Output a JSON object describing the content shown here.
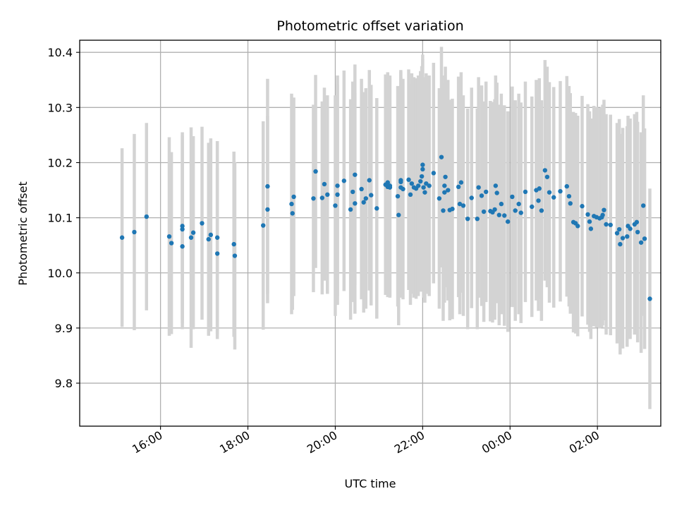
{
  "chart_data": {
    "type": "scatter",
    "title": "Photometric offset variation",
    "xlabel": "UTC time",
    "ylabel": "Photometric offset",
    "grid": true,
    "x_unit": "hours since 00:00 of first night (24 = 00:00 next day)",
    "xlim": [
      14.15,
      27.45
    ],
    "ylim": [
      9.722,
      10.422
    ],
    "xticks": [
      {
        "value": 16,
        "label": "16:00"
      },
      {
        "value": 18,
        "label": "18:00"
      },
      {
        "value": 20,
        "label": "20:00"
      },
      {
        "value": 22,
        "label": "22:00"
      },
      {
        "value": 24,
        "label": "00:00"
      },
      {
        "value": 26,
        "label": "02:00"
      }
    ],
    "yticks": [
      {
        "value": 9.8,
        "label": "9.8"
      },
      {
        "value": 9.9,
        "label": "9.9"
      },
      {
        "value": 10.0,
        "label": "10.0"
      },
      {
        "value": 10.1,
        "label": "10.1"
      },
      {
        "value": 10.2,
        "label": "10.2"
      },
      {
        "value": 10.3,
        "label": "10.3"
      },
      {
        "value": 10.4,
        "label": "10.4"
      }
    ],
    "series": [
      {
        "name": "photometric offset",
        "marker_color": "#1f77b4",
        "errorbar_color": "#d3d3d3",
        "x": [
          15.12,
          15.4,
          15.68,
          16.2,
          16.25,
          16.5,
          16.5,
          16.5,
          16.7,
          16.75,
          16.95,
          17.1,
          17.15,
          17.3,
          17.3,
          17.68,
          17.7,
          18.35,
          18.45,
          18.45,
          19.0,
          19.02,
          19.05,
          19.5,
          19.55,
          19.7,
          19.75,
          19.82,
          20.0,
          20.05,
          20.05,
          20.2,
          20.35,
          20.4,
          20.45,
          20.45,
          20.6,
          20.65,
          20.7,
          20.78,
          20.82,
          20.95,
          21.15,
          21.2,
          21.2,
          21.25,
          21.25,
          21.43,
          21.45,
          21.5,
          21.5,
          21.5,
          21.55,
          21.68,
          21.72,
          21.75,
          21.8,
          21.85,
          21.9,
          21.95,
          21.98,
          22.0,
          22.0,
          22.02,
          22.05,
          22.08,
          22.15,
          22.25,
          22.38,
          22.43,
          22.47,
          22.5,
          22.5,
          22.52,
          22.58,
          22.62,
          22.68,
          22.82,
          22.85,
          22.88,
          22.93,
          23.03,
          23.12,
          23.25,
          23.28,
          23.35,
          23.4,
          23.45,
          23.55,
          23.6,
          23.65,
          23.67,
          23.7,
          23.75,
          23.8,
          23.87,
          23.95,
          24.05,
          24.12,
          24.2,
          24.25,
          24.35,
          24.5,
          24.6,
          24.65,
          24.67,
          24.72,
          24.8,
          24.85,
          24.9,
          25.0,
          25.15,
          25.3,
          25.35,
          25.38,
          25.45,
          25.5,
          25.55,
          25.65,
          25.78,
          25.82,
          25.85,
          25.92,
          25.98,
          26.05,
          26.1,
          26.12,
          26.15,
          26.2,
          26.3,
          26.45,
          26.5,
          26.52,
          26.58,
          26.68,
          26.7,
          26.75,
          26.85,
          26.9,
          26.92,
          27.0,
          27.05,
          27.08,
          27.2
        ],
        "y": [
          10.064,
          10.074,
          10.102,
          10.066,
          10.054,
          10.085,
          10.079,
          10.048,
          10.064,
          10.073,
          10.09,
          10.061,
          10.069,
          10.064,
          10.035,
          10.052,
          10.031,
          10.086,
          10.115,
          10.157,
          10.125,
          10.108,
          10.138,
          10.135,
          10.184,
          10.136,
          10.161,
          10.142,
          10.122,
          10.158,
          10.142,
          10.167,
          10.115,
          10.147,
          10.126,
          10.178,
          10.152,
          10.128,
          10.135,
          10.168,
          10.141,
          10.117,
          10.16,
          10.164,
          10.156,
          10.158,
          10.155,
          10.139,
          10.105,
          10.168,
          10.165,
          10.155,
          10.152,
          10.169,
          10.142,
          10.162,
          10.155,
          10.153,
          10.158,
          10.166,
          10.175,
          10.188,
          10.196,
          10.155,
          10.146,
          10.162,
          10.158,
          10.181,
          10.135,
          10.21,
          10.113,
          10.158,
          10.146,
          10.174,
          10.15,
          10.114,
          10.116,
          10.156,
          10.125,
          10.164,
          10.122,
          10.098,
          10.136,
          10.098,
          10.155,
          10.14,
          10.111,
          10.147,
          10.112,
          10.11,
          10.115,
          10.158,
          10.145,
          10.105,
          10.125,
          10.104,
          10.093,
          10.138,
          10.113,
          10.125,
          10.109,
          10.147,
          10.12,
          10.15,
          10.131,
          10.153,
          10.113,
          10.186,
          10.174,
          10.146,
          10.137,
          10.148,
          10.157,
          10.139,
          10.126,
          10.092,
          10.09,
          10.085,
          10.121,
          10.106,
          10.093,
          10.08,
          10.103,
          10.101,
          10.099,
          10.101,
          10.105,
          10.114,
          10.088,
          10.087,
          10.072,
          10.079,
          10.052,
          10.063,
          10.066,
          10.085,
          10.08,
          10.088,
          10.092,
          10.074,
          10.055,
          10.122,
          10.062,
          9.953
        ],
        "err": [
          0.162,
          0.178,
          0.17,
          0.18,
          0.165,
          0.17,
          0.17,
          0.15,
          0.2,
          0.175,
          0.175,
          0.175,
          0.175,
          0.175,
          0.155,
          0.168,
          0.17,
          0.189,
          0.17,
          0.195,
          0.2,
          0.175,
          0.18,
          0.17,
          0.175,
          0.175,
          0.175,
          0.18,
          0.2,
          0.2,
          0.2,
          0.2,
          0.2,
          0.2,
          0.2,
          0.2,
          0.2,
          0.2,
          0.2,
          0.2,
          0.2,
          0.2,
          0.2,
          0.2,
          0.2,
          0.2,
          0.2,
          0.2,
          0.2,
          0.2,
          0.2,
          0.2,
          0.2,
          0.2,
          0.2,
          0.2,
          0.2,
          0.2,
          0.2,
          0.2,
          0.2,
          0.2,
          0.2,
          0.2,
          0.2,
          0.2,
          0.2,
          0.2,
          0.2,
          0.2,
          0.2,
          0.2,
          0.2,
          0.2,
          0.2,
          0.2,
          0.2,
          0.2,
          0.2,
          0.2,
          0.2,
          0.2,
          0.2,
          0.2,
          0.2,
          0.2,
          0.2,
          0.2,
          0.2,
          0.2,
          0.2,
          0.2,
          0.2,
          0.2,
          0.2,
          0.2,
          0.2,
          0.2,
          0.2,
          0.2,
          0.2,
          0.2,
          0.2,
          0.2,
          0.2,
          0.2,
          0.2,
          0.2,
          0.2,
          0.2,
          0.2,
          0.2,
          0.2,
          0.2,
          0.2,
          0.2,
          0.2,
          0.2,
          0.2,
          0.2,
          0.2,
          0.2,
          0.2,
          0.2,
          0.2,
          0.2,
          0.2,
          0.2,
          0.2,
          0.2,
          0.2,
          0.2,
          0.2,
          0.2,
          0.2,
          0.2,
          0.2,
          0.2,
          0.2,
          0.2,
          0.2,
          0.2,
          0.2,
          0.2
        ]
      }
    ]
  }
}
